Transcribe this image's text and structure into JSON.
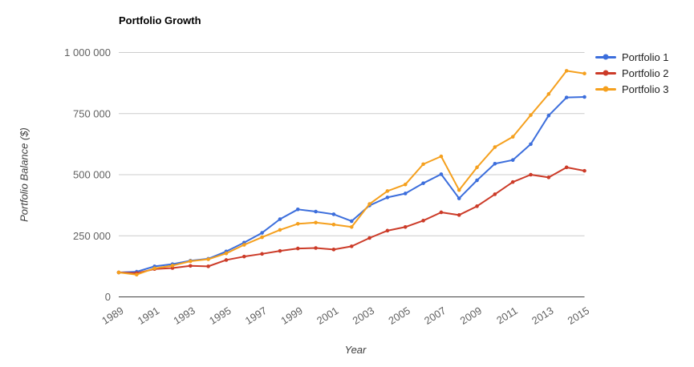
{
  "chart_data": {
    "type": "line",
    "title": "Portfolio Growth",
    "xlabel": "Year",
    "ylabel": "Portfolio Balance ($)",
    "grid": true,
    "legend_position": "right",
    "ylim": [
      0,
      1000000
    ],
    "x": [
      1989,
      1990,
      1991,
      1992,
      1993,
      1994,
      1995,
      1996,
      1997,
      1998,
      1999,
      2000,
      2001,
      2002,
      2003,
      2004,
      2005,
      2006,
      2007,
      2008,
      2009,
      2010,
      2011,
      2012,
      2013,
      2014,
      2015
    ],
    "x_tick_labels": [
      "1989",
      "1991",
      "1993",
      "1995",
      "1997",
      "1999",
      "2001",
      "2003",
      "2005",
      "2007",
      "2009",
      "2011",
      "2013",
      "2015"
    ],
    "y_ticks": [
      {
        "value": 0,
        "label": "0"
      },
      {
        "value": 250000,
        "label": "250 000"
      },
      {
        "value": 500000,
        "label": "500 000"
      },
      {
        "value": 750000,
        "label": "750 000"
      },
      {
        "value": 1000000,
        "label": "1 000 000"
      }
    ],
    "series": [
      {
        "name": "Portfolio 1",
        "color": "#3c6edc",
        "values": [
          100000,
          103000,
          125000,
          134000,
          148000,
          156000,
          186000,
          222000,
          262000,
          318000,
          358000,
          349000,
          338000,
          310000,
          374000,
          407000,
          423000,
          465000,
          502000,
          403000,
          477000,
          545000,
          560000,
          625000,
          742000,
          816000,
          818000
        ]
      },
      {
        "name": "Portfolio 2",
        "color": "#cc3b28",
        "values": [
          100000,
          97000,
          114000,
          118000,
          127000,
          125000,
          151000,
          165000,
          176000,
          188000,
          198000,
          200000,
          194000,
          207000,
          241000,
          271000,
          286000,
          312000,
          346000,
          335000,
          371000,
          420000,
          470000,
          500000,
          489000,
          530000,
          516000
        ]
      },
      {
        "name": "Portfolio 3",
        "color": "#f5a01e",
        "values": [
          100000,
          91000,
          117000,
          128000,
          146000,
          154000,
          178000,
          213000,
          244000,
          274000,
          299000,
          304000,
          296000,
          286000,
          380000,
          433000,
          460000,
          543000,
          575000,
          437000,
          530000,
          613000,
          655000,
          744000,
          830000,
          925000,
          914000
        ]
      }
    ],
    "colors": {
      "gridline": "#cccccc",
      "axis_line": "#424242",
      "tick_label": "#616161",
      "title": "#000000"
    }
  }
}
